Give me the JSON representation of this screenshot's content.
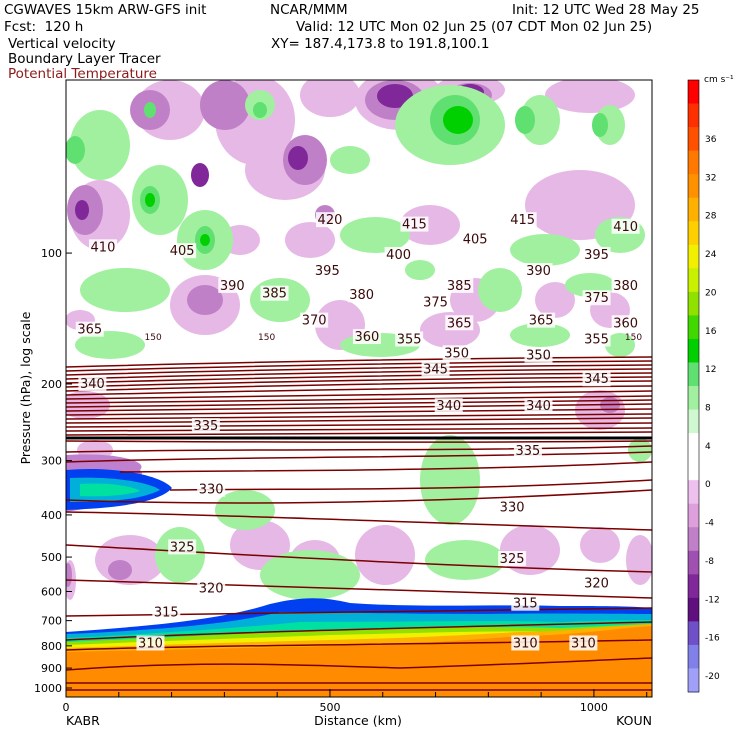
{
  "header": {
    "model": "CGWAVES 15km ARW-GFS init",
    "org": "NCAR/MMM",
    "init": "Init: 12 UTC Wed 28 May 25",
    "fcst": "Fcst:  120 h",
    "valid": "Valid: 12 UTC Mon 02 Jun 25 (07 CDT Mon 02 Jun 25)",
    "field1": "Vertical velocity",
    "xy": "XY= 187.4,173.8 to 191.8,100.1",
    "field2": "Boundary Layer Tracer",
    "field3": "Potential Temperature"
  },
  "chart_data": {
    "type": "heatmap",
    "xlabel": "Distance (km)",
    "ylabel": "Pressure (hPa), log scale",
    "x_ticks": [
      0,
      500,
      1000
    ],
    "xlim": [
      0,
      1110
    ],
    "y_scale": "log",
    "y_ticks": [
      100,
      200,
      300,
      400,
      500,
      600,
      700,
      800,
      900,
      1000
    ],
    "ylim": [
      1000,
      40
    ],
    "x_endpoint_labels": {
      "left": "KABR",
      "right": "KOUN"
    },
    "colorbar": {
      "unit": "cm s⁻¹",
      "ticks": [
        36,
        32,
        28,
        24,
        20,
        16,
        12,
        8,
        4,
        0,
        -4,
        -8,
        -12,
        -16,
        -20
      ],
      "colors": [
        "#ff0000",
        "#ff3000",
        "#ff5000",
        "#ff7800",
        "#ff9000",
        "#ffb000",
        "#ffd000",
        "#f0f000",
        "#c8f000",
        "#90e000",
        "#40d800",
        "#00d000",
        "#60e070",
        "#a0f0a0",
        "#d0f8d0",
        "#ffffff",
        "#ffffff",
        "#eec0ee",
        "#dda0dd",
        "#c080c8",
        "#a050b0",
        "#80289a",
        "#60107e",
        "#7050c8",
        "#8080e8",
        "#a0a0f8"
      ]
    },
    "potential_temperature_contours": [
      {
        "theta": 310,
        "label_x_km": [
          160,
          870,
          980
        ],
        "pressure_hPa": [
          790,
          790,
          790
        ]
      },
      {
        "theta": 315,
        "label_x_km": [
          190,
          870
        ],
        "pressure_hPa": [
          670,
          640
        ]
      },
      {
        "theta": 320,
        "label_x_km": [
          275,
          1005
        ],
        "pressure_hPa": [
          590,
          575
        ]
      },
      {
        "theta": 325,
        "label_x_km": [
          220,
          845
        ],
        "pressure_hPa": [
          475,
          505
        ]
      },
      {
        "theta": 330,
        "label_x_km": [
          275,
          845
        ],
        "pressure_hPa": [
          350,
          385
        ]
      },
      {
        "theta": 335,
        "label_x_km": [
          265,
          875
        ],
        "pressure_hPa": [
          250,
          285
        ]
      },
      {
        "theta": 340,
        "label_x_km": [
          50,
          725,
          895
        ],
        "pressure_hPa": [
          200,
          225,
          225
        ]
      },
      {
        "theta": 345,
        "label_x_km": [
          700,
          1005
        ],
        "pressure_hPa": [
          185,
          195
        ]
      },
      {
        "theta": 350,
        "label_x_km": [
          740,
          895
        ],
        "pressure_hPa": [
          170,
          172
        ]
      },
      {
        "theta": 355,
        "label_x_km": [
          650,
          1005
        ],
        "pressure_hPa": [
          158,
          158
        ]
      },
      {
        "theta": 360,
        "label_x_km": [
          570,
          1060
        ],
        "pressure_hPa": [
          156,
          145
        ]
      },
      {
        "theta": 365,
        "label_x_km": [
          45,
          745,
          900
        ],
        "pressure_hPa": [
          150,
          145,
          143
        ]
      },
      {
        "theta": 370,
        "label_x_km": [
          470
        ],
        "pressure_hPa": [
          143
        ]
      },
      {
        "theta": 375,
        "label_x_km": [
          700,
          1005
        ],
        "pressure_hPa": [
          130,
          127
        ]
      },
      {
        "theta": 380,
        "label_x_km": [
          560,
          1060
        ],
        "pressure_hPa": [
          125,
          119
        ]
      },
      {
        "theta": 385,
        "label_x_km": [
          395,
          745
        ],
        "pressure_hPa": [
          124,
          119
        ]
      },
      {
        "theta": 390,
        "label_x_km": [
          315,
          895
        ],
        "pressure_hPa": [
          119,
          110
        ]
      },
      {
        "theta": 395,
        "label_x_km": [
          495,
          1005
        ],
        "pressure_hPa": [
          110,
          101
        ]
      },
      {
        "theta": 400,
        "label_x_km": [
          630
        ],
        "pressure_hPa": [
          101
        ]
      },
      {
        "theta": 405,
        "label_x_km": [
          220,
          775
        ],
        "pressure_hPa": [
          99,
          93
        ]
      },
      {
        "theta": 410,
        "label_x_km": [
          70,
          1060
        ],
        "pressure_hPa": [
          97,
          87
        ]
      },
      {
        "theta": 415,
        "label_x_km": [
          660,
          865
        ],
        "pressure_hPa": [
          86,
          84
        ]
      },
      {
        "theta": 420,
        "label_x_km": [
          500
        ],
        "pressure_hPa": [
          84
        ]
      }
    ],
    "other_labels": [
      {
        "text": "150",
        "x_km": 165,
        "pressure_hPa": 156
      },
      {
        "text": "150",
        "x_km": 380,
        "pressure_hPa": 156
      },
      {
        "text": "150",
        "x_km": 1075,
        "pressure_hPa": 156
      }
    ]
  }
}
